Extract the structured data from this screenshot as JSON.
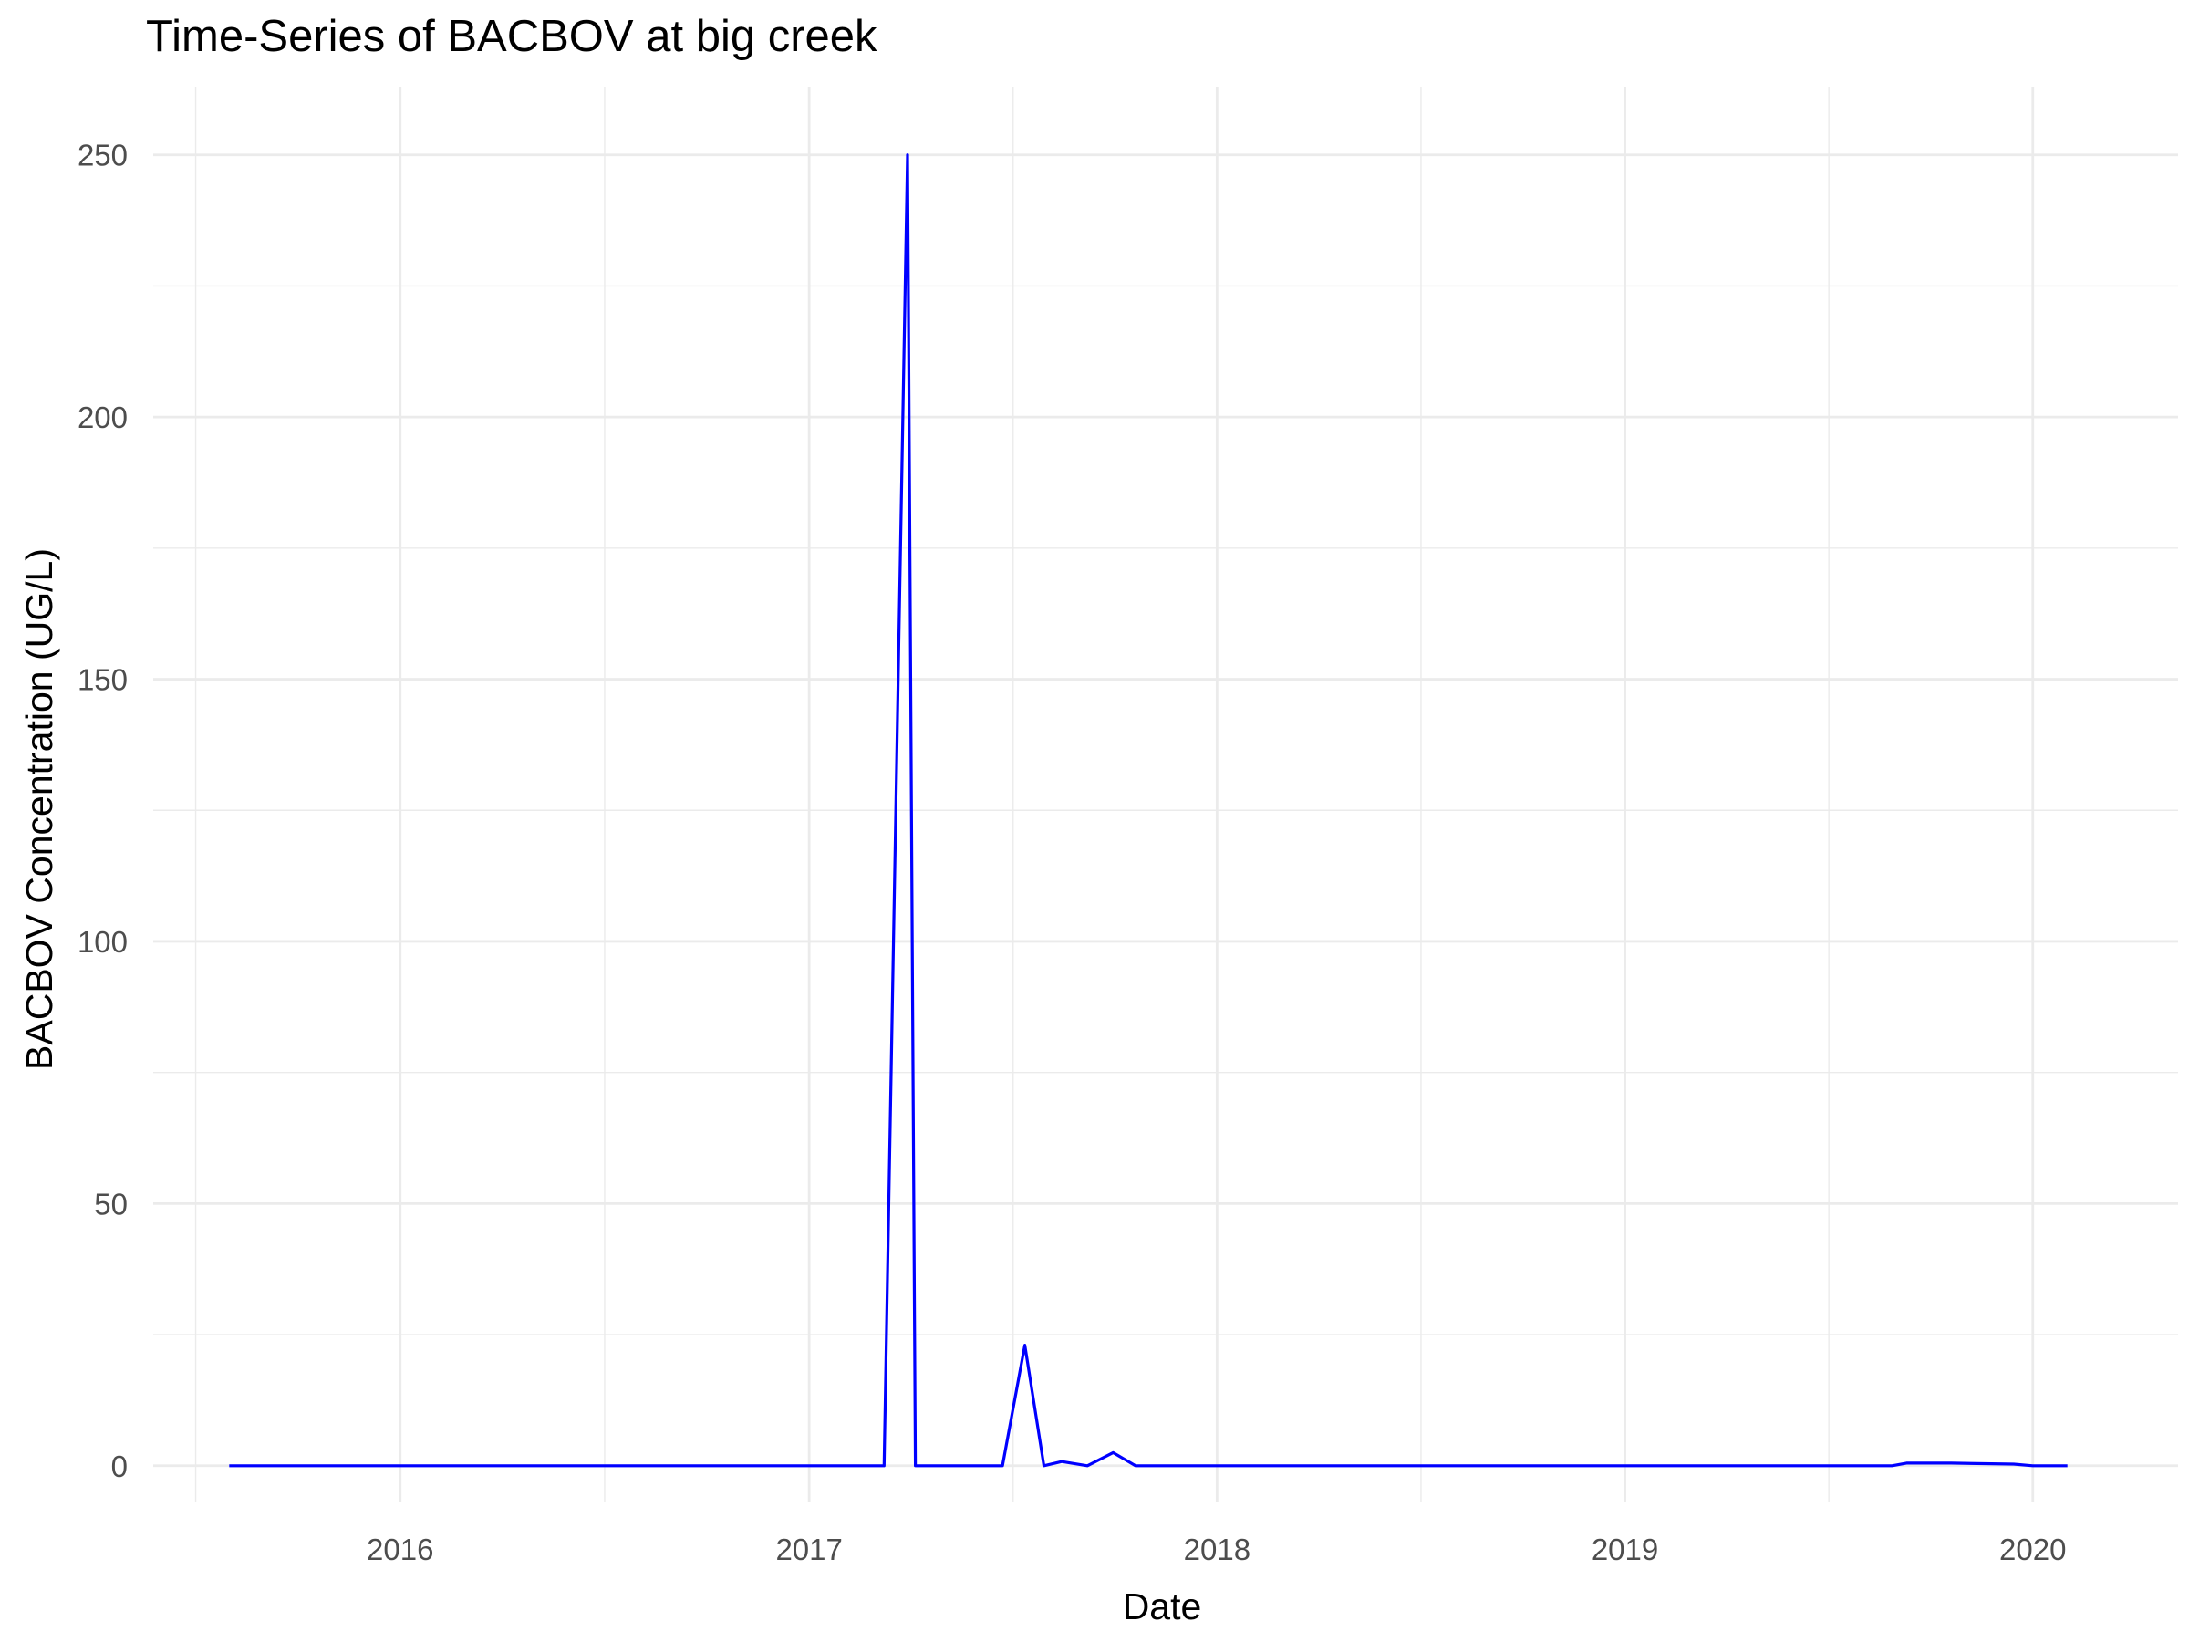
{
  "chart_data": {
    "type": "line",
    "title": "Time-Series of BACBOV at big creek",
    "xlabel": "Date",
    "ylabel": "BACBOV Concentration (UG/L)",
    "x_axis": {
      "type": "date",
      "range": [
        "2015-05-25",
        "2020-05-10"
      ],
      "ticks": [
        "2016-01-01",
        "2017-01-01",
        "2018-01-01",
        "2019-01-01",
        "2020-01-01"
      ],
      "tick_labels": [
        "2016",
        "2017",
        "2018",
        "2019",
        "2020"
      ]
    },
    "y_axis": {
      "range": [
        -7,
        263
      ],
      "ticks": [
        0,
        50,
        100,
        150,
        200,
        250
      ],
      "tick_labels": [
        "0",
        "50",
        "100",
        "150",
        "200",
        "250"
      ]
    },
    "grid": true,
    "series": [
      {
        "color": "#0000ff",
        "points": [
          {
            "x": "2015-08-01",
            "y": 0
          },
          {
            "x": "2017-03-09",
            "y": 0
          },
          {
            "x": "2017-03-30",
            "y": 250
          },
          {
            "x": "2017-04-06",
            "y": 0
          },
          {
            "x": "2017-06-23",
            "y": 0
          },
          {
            "x": "2017-07-13",
            "y": 23
          },
          {
            "x": "2017-07-30",
            "y": 0
          },
          {
            "x": "2017-08-15",
            "y": 0.8
          },
          {
            "x": "2017-09-07",
            "y": 0
          },
          {
            "x": "2017-09-30",
            "y": 2.5
          },
          {
            "x": "2017-10-20",
            "y": 0
          },
          {
            "x": "2019-08-28",
            "y": 0
          },
          {
            "x": "2019-09-10",
            "y": 0.5
          },
          {
            "x": "2019-10-20",
            "y": 0.5
          },
          {
            "x": "2019-12-15",
            "y": 0.3
          },
          {
            "x": "2020-01-01",
            "y": 0
          },
          {
            "x": "2020-02-01",
            "y": 0
          }
        ]
      }
    ]
  }
}
